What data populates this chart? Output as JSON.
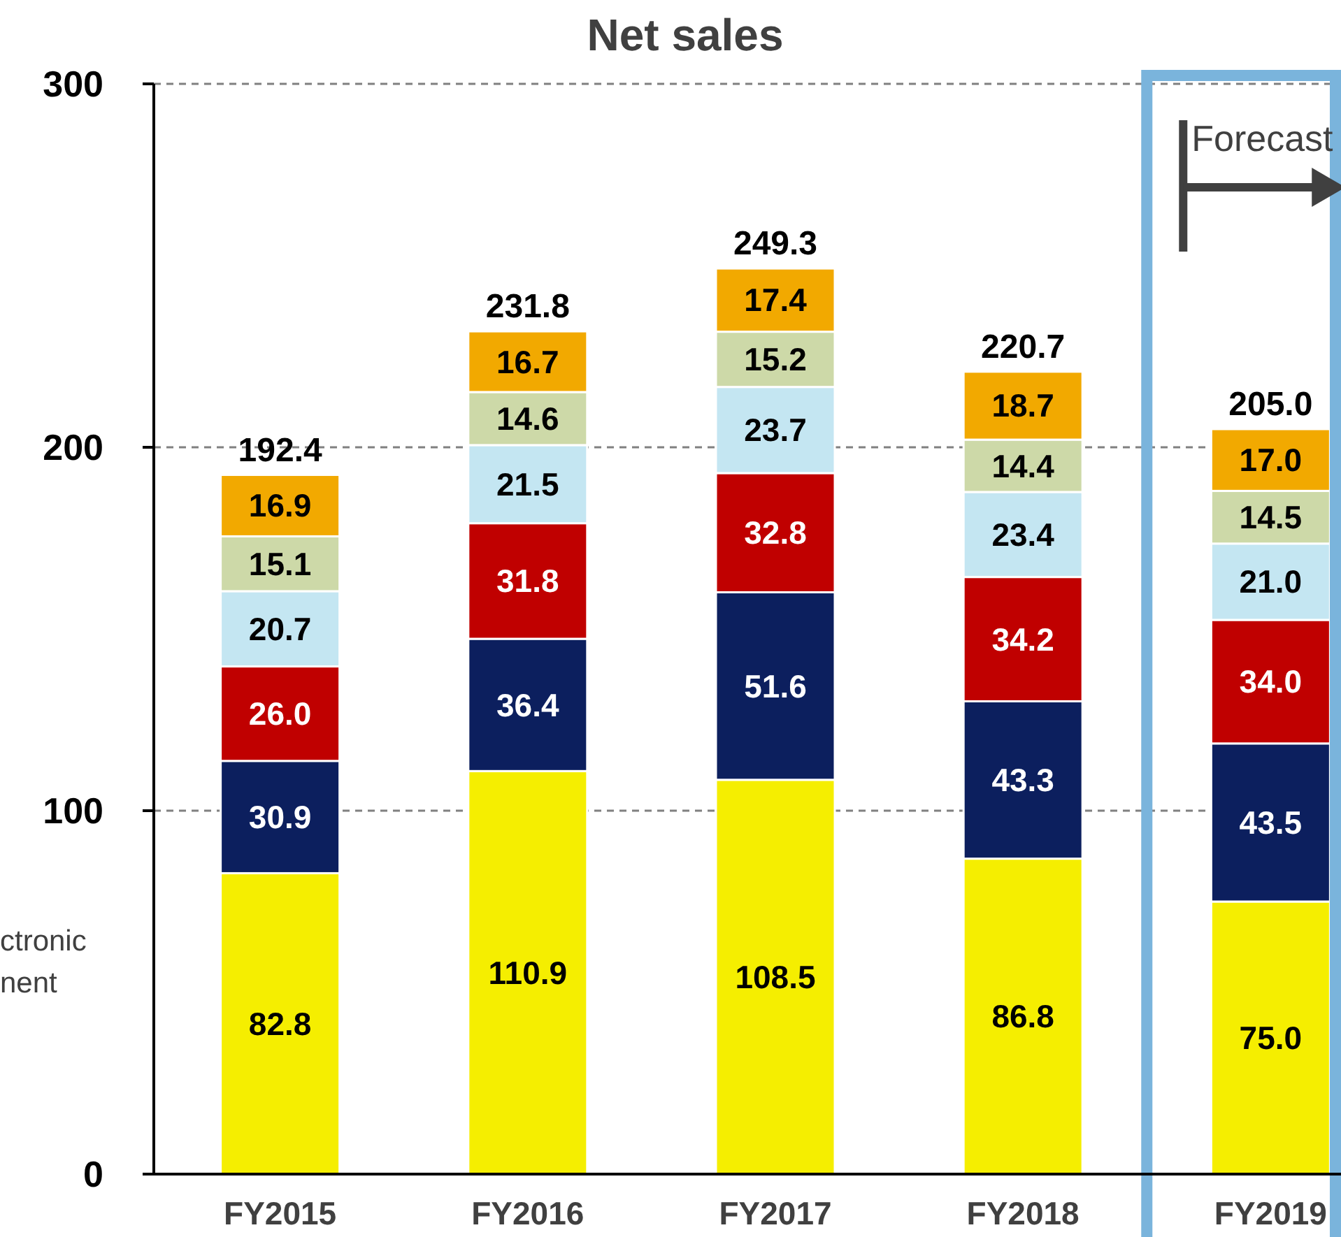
{
  "chart_data": {
    "type": "bar",
    "title": "Net sales",
    "stacked": true,
    "grid": "y",
    "categories": [
      "FY2015",
      "FY2016",
      "FY2017",
      "FY2018",
      "FY2019"
    ],
    "series": [
      {
        "color": "#f5ee00",
        "values": [
          82.8,
          110.9,
          108.5,
          86.8,
          75.0
        ],
        "value_labels": [
          "82.8",
          "110.9",
          "108.5",
          "86.8",
          "75.0"
        ]
      },
      {
        "color": "#0c1f5e",
        "values": [
          30.9,
          36.4,
          51.6,
          43.3,
          43.5
        ],
        "value_labels": [
          "30.9",
          "36.4",
          "51.6",
          "43.3",
          "43.5"
        ]
      },
      {
        "color": "#c00000",
        "values": [
          26.0,
          31.8,
          32.8,
          34.2,
          34.0
        ],
        "value_labels": [
          "26.0",
          "31.8",
          "32.8",
          "34.2",
          "34.0"
        ]
      },
      {
        "color": "#c4e6f2",
        "values": [
          20.7,
          21.5,
          23.7,
          23.4,
          21.0
        ],
        "value_labels": [
          "20.7",
          "21.5",
          "23.7",
          "23.4",
          "21.0"
        ]
      },
      {
        "color": "#cdd9a8",
        "values": [
          15.1,
          14.6,
          15.2,
          14.4,
          14.5
        ],
        "value_labels": [
          "15.1",
          "14.6",
          "15.2",
          "14.4",
          "14.5"
        ]
      },
      {
        "color": "#f2a900",
        "values": [
          16.9,
          16.7,
          17.4,
          18.7,
          17.0
        ],
        "value_labels": [
          "16.9",
          "16.7",
          "17.4",
          "18.7",
          "17.0"
        ]
      }
    ],
    "totals": [
      "192.4",
      "231.8",
      "249.3",
      "220.7",
      "205.0"
    ],
    "ylim": [
      0,
      300
    ],
    "yticks": [
      0,
      100,
      200,
      300
    ],
    "annotations": [
      "Forecast",
      "ctronic",
      "nent"
    ]
  }
}
